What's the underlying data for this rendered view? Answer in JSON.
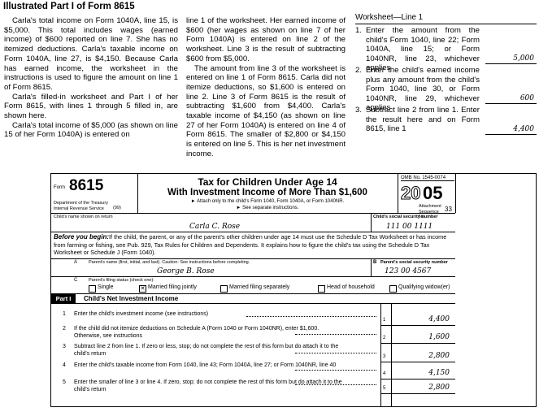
{
  "title": "Illustrated Part I of Form 8615",
  "columns": [
    {
      "paragraphs": [
        "Carla's total income on Form 1040A, line 15, is $5,000. This total includes wages (earned income) of $600 reported on line 7. She has no itemized deductions. Carla's taxable income on Form 1040A, line 27, is $4,150. Because Carla has earned income, the worksheet in the instructions is used to figure the amount on line 1 of Form 8615.",
        "Carla's filled-in worksheet and Part I of her Form 8615, with lines 1 through 5 filled in, are shown here.",
        "Carla's total income of $5,000 (as shown on line 15 of her Form 1040A) is entered on"
      ]
    },
    {
      "paragraphs": [
        "line 1 of the worksheet. Her earned income of $600 (her wages as shown on line 7 of her Form 1040A) is entered on line 2 of the worksheet. Line 3 is the result of subtracting $600 from $5,000.",
        "The amount from line 3 of the worksheet is entered on line 1 of Form 8615. Carla did not itemize deductions, so $1,600 is entered on line 2. Line 3 of Form 8615 is the result of subtracting $1,600 from $4,400. Carla's taxable income of $4,150 (as shown on line 27 of her Form 1040A) is entered on line 4 of Form 8615. The smaller of $2,800 or $4,150 is entered on line 5. This is her net investment income."
      ]
    }
  ],
  "worksheet": {
    "title": "Worksheet—Line 1",
    "items": [
      {
        "num": "1.",
        "text": "Enter the amount from the child's Form 1040, line 22; Form 1040A, line 15; or Form 1040NR, line 23, whichever applies",
        "amount": "5,000"
      },
      {
        "num": "2.",
        "text": "Enter the child's earned income plus any amount from the child's Form 1040, line 30, or Form 1040NR, line 29, whichever applies",
        "amount": "600"
      },
      {
        "num": "3.",
        "text": "Subtract line 2 from line 1. Enter the result here and on Form 8615, line 1",
        "amount": "4,400"
      }
    ]
  },
  "form": {
    "form_label": "Form",
    "number": "8615",
    "department": "Department of the Treasury Internal Revenue Service",
    "irs_code": "(99)",
    "title1": "Tax for Children Under Age 14",
    "title2": "With Investment Income of More Than $1,600",
    "attach": "► Attach only to the child's Form 1040, Form 1040A, or Form 1040NR.",
    "instructions": "► See separate instructions.",
    "omb": "OMB No. 1545-0074",
    "year_a": "20",
    "year_b": "05",
    "attachment": "Attachment Sequence No.",
    "sequence": "33",
    "child_name_label": "Child's name shown on return",
    "child_name": "Carla C. Rose",
    "child_ssn_label": "Child's social security number",
    "child_ssn": "111 00 1111",
    "before_label": "Before you begin:",
    "before_text": "If the child, the parent, or any of the parent's other children under age 14 must use the Schedule D Tax Worksheet or has income from farming or fishing, see Pub. 929, Tax Rules for Children and Dependents. It explains how to figure the child's tax using the Schedule D Tax Worksheet or Schedule J (Form 1040).",
    "a_letter": "A",
    "parent_name_label": "Parent's name (first, initial, and last). Caution: See instructions before completing.",
    "parent_name": "George B. Rose",
    "b_letter": "B",
    "parent_ssn_label": "Parent's social security number",
    "parent_ssn": "123 00 4567",
    "c_letter": "C",
    "status_label": "Parent's filing status (check one):",
    "statuses": [
      {
        "label": "Single",
        "checked": false
      },
      {
        "label": "Married filing jointly",
        "checked": true
      },
      {
        "label": "Married filing separately",
        "checked": false
      },
      {
        "label": "Head of household",
        "checked": false
      },
      {
        "label": "Qualifying widow(er)",
        "checked": false
      }
    ],
    "part_label": "Part I",
    "part_title": "Child's Net Investment Income",
    "lines": [
      {
        "num": "1",
        "text": "Enter the child's investment income (see instructions)",
        "box": "1",
        "amount": "4,400"
      },
      {
        "num": "2",
        "text": "If the child did not itemize deductions on Schedule A (Form 1040 or Form 1040NR), enter $1,600. Otherwise, see instructions",
        "box": "2",
        "amount": "1,600"
      },
      {
        "num": "3",
        "text": "Subtract line 2 from line 1. If zero or less, stop; do not complete the rest of this form but do attach it to the child's return",
        "box": "3",
        "amount": "2,800"
      },
      {
        "num": "4",
        "text": "Enter the child's taxable income from Form 1040, line 43; Form 1040A, line 27; or Form 1040NR, line 40",
        "box": "4",
        "amount": "4,150"
      },
      {
        "num": "5",
        "text": "Enter the smaller of line 3 or line 4. If zero, stop; do not complete the rest of this form but do attach it to the child's return",
        "box": "5",
        "amount": "2,800"
      }
    ]
  }
}
